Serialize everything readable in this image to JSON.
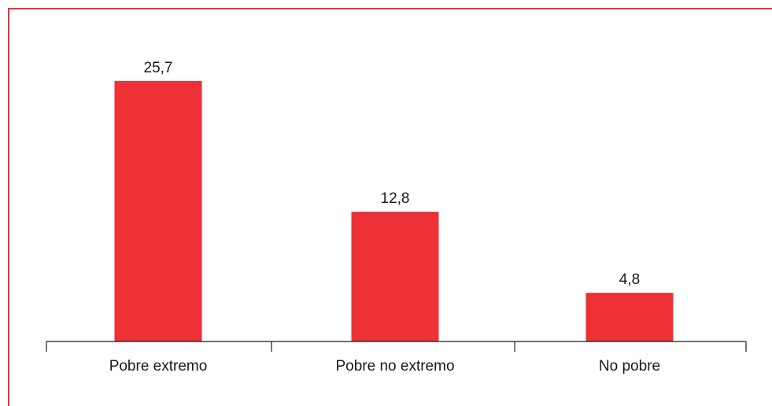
{
  "colors": {
    "accent": "#EE3137",
    "axis": "#1a1a1a",
    "text": "#1a1a1a"
  },
  "chart_data": {
    "type": "bar",
    "categories": [
      "Pobre extremo",
      "Pobre no extremo",
      "No pobre"
    ],
    "values": [
      25.7,
      12.8,
      4.8
    ],
    "value_labels": [
      "25,7",
      "12,8",
      "4,8"
    ],
    "title": "",
    "xlabel": "",
    "ylabel": "",
    "ylim": [
      0,
      30
    ],
    "grid": false,
    "legend": "none"
  }
}
